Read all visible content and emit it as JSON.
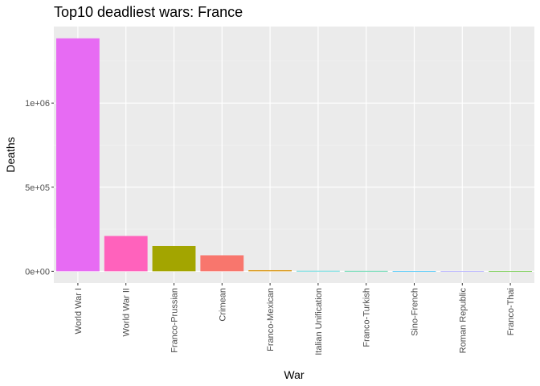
{
  "chart_data": {
    "type": "bar",
    "title": "Top10 deadliest wars:  France",
    "xlabel": "War",
    "ylabel": "Deaths",
    "categories": [
      "World War I",
      "World War II",
      "Franco-Prussian",
      "Crimean",
      "Franco-Mexican",
      "Italian Unification",
      "Franco-Turkish",
      "Sino-French",
      "Roman Republic",
      "Franco-Thai"
    ],
    "values": [
      1385000,
      210000,
      150000,
      95000,
      6000,
      2500,
      2200,
      1000,
      1000,
      500
    ],
    "colors": [
      "#e76bf3",
      "#ff62bc",
      "#a3a500",
      "#f8766d",
      "#d89000",
      "#00bfc4",
      "#00bf7d",
      "#00b0f6",
      "#9590ff",
      "#39b600"
    ],
    "ylim": [
      -70000,
      1455000
    ],
    "yticks": [
      0,
      500000,
      1000000
    ],
    "ytick_labels": [
      "0e+00",
      "5e+05",
      "1e+06"
    ],
    "grid": true,
    "legend": "none"
  }
}
